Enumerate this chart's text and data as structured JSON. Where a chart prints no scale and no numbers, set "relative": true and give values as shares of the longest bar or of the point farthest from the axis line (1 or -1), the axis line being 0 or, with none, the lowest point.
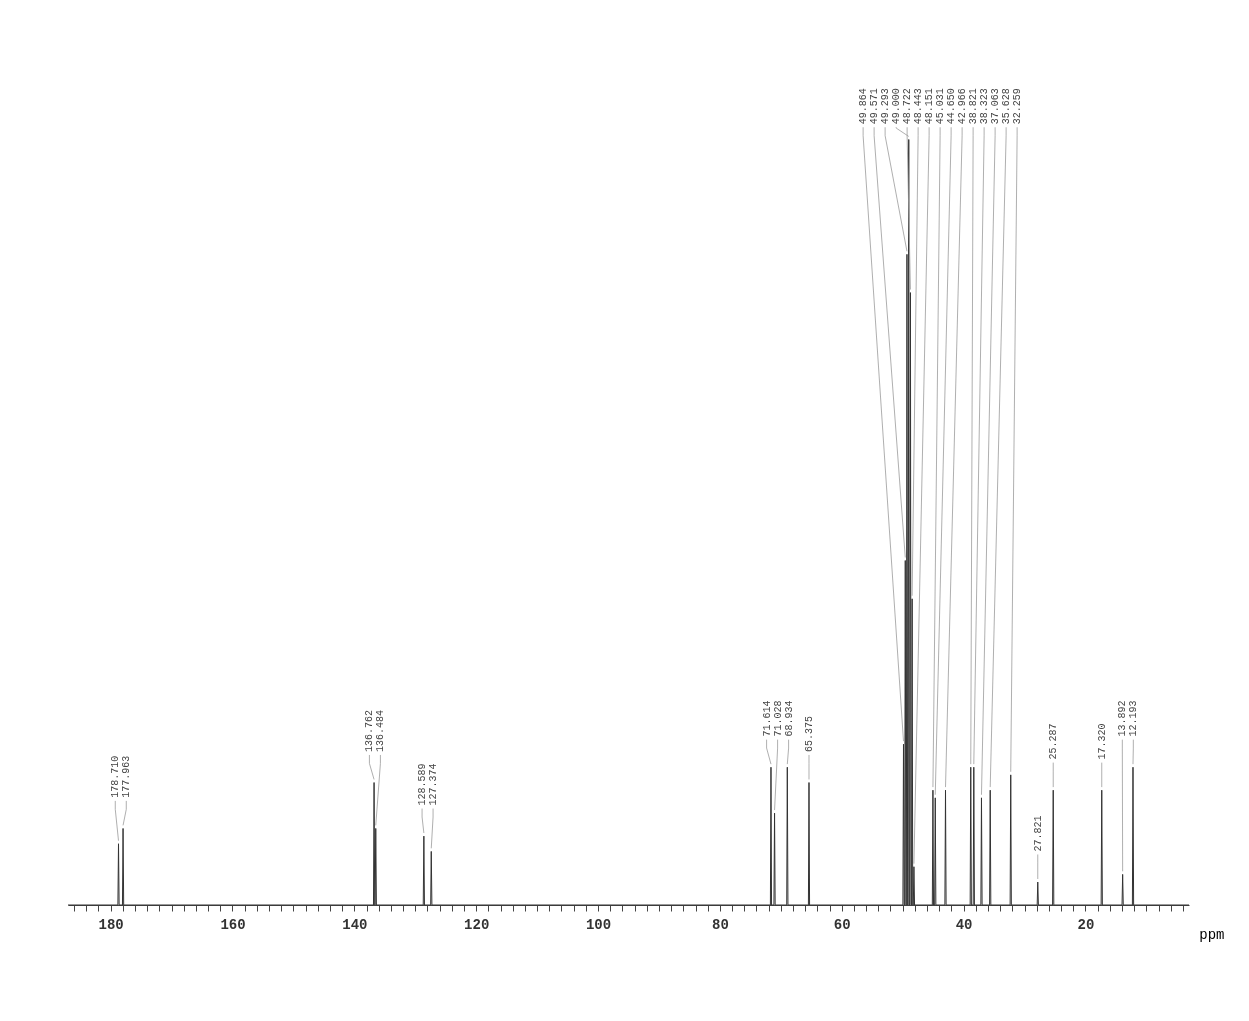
{
  "chart_data": {
    "type": "line",
    "relative": true,
    "xlabel": "ppm",
    "grid": false,
    "marker": "none",
    "line_style": "solid",
    "xlim": [
      187,
      3
    ],
    "xticks": [
      {
        "value": 186,
        "label": null
      },
      {
        "value": 184,
        "label": null
      },
      {
        "value": 182,
        "label": null
      },
      180,
      {
        "value": 178,
        "label": null
      },
      {
        "value": 176,
        "label": null
      },
      {
        "value": 174,
        "label": null
      },
      {
        "value": 172,
        "label": null
      },
      {
        "value": 170,
        "label": null
      },
      {
        "value": 168,
        "label": null
      },
      {
        "value": 166,
        "label": null
      },
      {
        "value": 164,
        "label": null
      },
      {
        "value": 162,
        "label": null
      },
      160,
      {
        "value": 158,
        "label": null
      },
      {
        "value": 156,
        "label": null
      },
      {
        "value": 154,
        "label": null
      },
      {
        "value": 152,
        "label": null
      },
      {
        "value": 150,
        "label": null
      },
      {
        "value": 148,
        "label": null
      },
      {
        "value": 146,
        "label": null
      },
      {
        "value": 144,
        "label": null
      },
      {
        "value": 142,
        "label": null
      },
      140,
      {
        "value": 138,
        "label": null
      },
      {
        "value": 136,
        "label": null
      },
      {
        "value": 134,
        "label": null
      },
      {
        "value": 132,
        "label": null
      },
      {
        "value": 130,
        "label": null
      },
      {
        "value": 128,
        "label": null
      },
      {
        "value": 126,
        "label": null
      },
      {
        "value": 124,
        "label": null
      },
      {
        "value": 122,
        "label": null
      },
      120,
      {
        "value": 118,
        "label": null
      },
      {
        "value": 116,
        "label": null
      },
      {
        "value": 114,
        "label": null
      },
      {
        "value": 112,
        "label": null
      },
      {
        "value": 110,
        "label": null
      },
      {
        "value": 108,
        "label": null
      },
      {
        "value": 106,
        "label": null
      },
      {
        "value": 104,
        "label": null
      },
      {
        "value": 102,
        "label": null
      },
      100,
      {
        "value": 98,
        "label": null
      },
      {
        "value": 96,
        "label": null
      },
      {
        "value": 94,
        "label": null
      },
      {
        "value": 92,
        "label": null
      },
      {
        "value": 90,
        "label": null
      },
      {
        "value": 88,
        "label": null
      },
      {
        "value": 86,
        "label": null
      },
      {
        "value": 84,
        "label": null
      },
      {
        "value": 82,
        "label": null
      },
      80,
      {
        "value": 78,
        "label": null
      },
      {
        "value": 76,
        "label": null
      },
      {
        "value": 74,
        "label": null
      },
      {
        "value": 72,
        "label": null
      },
      {
        "value": 70,
        "label": null
      },
      {
        "value": 68,
        "label": null
      },
      {
        "value": 66,
        "label": null
      },
      {
        "value": 64,
        "label": null
      },
      {
        "value": 62,
        "label": null
      },
      60,
      {
        "value": 58,
        "label": null
      },
      {
        "value": 56,
        "label": null
      },
      {
        "value": 54,
        "label": null
      },
      {
        "value": 52,
        "label": null
      },
      {
        "value": 50,
        "label": null
      },
      {
        "value": 48,
        "label": null
      },
      {
        "value": 46,
        "label": null
      },
      {
        "value": 44,
        "label": null
      },
      {
        "value": 42,
        "label": null
      },
      40,
      {
        "value": 38,
        "label": null
      },
      {
        "value": 36,
        "label": null
      },
      {
        "value": 34,
        "label": null
      },
      {
        "value": 32,
        "label": null
      },
      {
        "value": 30,
        "label": null
      },
      {
        "value": 28,
        "label": null
      },
      {
        "value": 26,
        "label": null
      },
      {
        "value": 24,
        "label": null
      },
      {
        "value": 22,
        "label": null
      },
      20,
      {
        "value": 18,
        "label": null
      },
      {
        "value": 16,
        "label": null
      },
      {
        "value": 14,
        "label": null
      },
      {
        "value": 12,
        "label": null
      },
      {
        "value": 10,
        "label": null
      },
      {
        "value": 8,
        "label": null
      },
      {
        "value": 6,
        "label": null
      },
      {
        "value": 4,
        "label": null
      }
    ],
    "series": [
      {
        "color": "#333333",
        "x": [
          187,
          178.81,
          178.71,
          178.61,
          178.06,
          177.963,
          177.86,
          136.86,
          136.762,
          136.66,
          136.58,
          136.484,
          136.38,
          128.69,
          128.589,
          128.49,
          127.47,
          127.374,
          127.27,
          71.71,
          71.614,
          71.52,
          71.13,
          71.028,
          70.93,
          69.03,
          68.934,
          68.83,
          65.47,
          65.375,
          65.28,
          49.96,
          49.864,
          49.76,
          49.67,
          49.571,
          49.47,
          49.39,
          49.293,
          49.19,
          49.1,
          49.0,
          48.9,
          48.82,
          48.722,
          48.62,
          48.54,
          48.443,
          48.35,
          48.25,
          48.151,
          48.05,
          45.13,
          45.031,
          44.93,
          44.75,
          44.65,
          44.55,
          43.07,
          42.966,
          42.87,
          38.92,
          38.821,
          38.72,
          38.42,
          38.323,
          38.22,
          37.16,
          37.063,
          36.96,
          35.73,
          35.628,
          35.53,
          32.36,
          32.259,
          32.16,
          27.92,
          27.821,
          27.72,
          25.39,
          25.287,
          25.19,
          17.42,
          17.32,
          17.22,
          13.99,
          13.892,
          13.79,
          12.29,
          12.193,
          12.09,
          3
        ],
        "values": [
          0,
          0,
          0.08,
          0,
          0,
          0.1,
          0,
          0,
          0.16,
          0,
          0,
          0.1,
          0,
          0,
          0.09,
          0,
          0,
          0.07,
          0,
          0,
          0.18,
          0,
          0,
          0.12,
          0,
          0,
          0.18,
          0,
          0,
          0.16,
          0,
          0,
          0.21,
          0,
          0,
          0.45,
          0,
          0,
          0.85,
          0,
          0,
          1,
          0,
          0,
          0.8,
          0,
          0,
          0.4,
          0,
          0,
          0.05,
          0,
          0,
          0.15,
          0,
          0,
          0.14,
          0,
          0,
          0.15,
          0,
          0,
          0.18,
          0,
          0,
          0.18,
          0,
          0,
          0.14,
          0,
          0,
          0.15,
          0,
          0,
          0.17,
          0,
          0,
          0.03,
          0,
          0,
          0.15,
          0,
          0,
          0.15,
          0,
          0,
          0.04,
          0,
          0,
          0.18,
          0,
          0
        ]
      }
    ],
    "annotations": [
      {
        "text": "178.710",
        "x": 178.71,
        "y": 0.08
      },
      {
        "text": "177.963",
        "x": 177.963,
        "y": 0.1
      },
      {
        "text": "136.762",
        "x": 136.762,
        "y": 0.16
      },
      {
        "text": "136.484",
        "x": 136.484,
        "y": 0.1
      },
      {
        "text": "128.589",
        "x": 128.589,
        "y": 0.09
      },
      {
        "text": "127.374",
        "x": 127.374,
        "y": 0.07
      },
      {
        "text": "71.614",
        "x": 71.614,
        "y": 0.18
      },
      {
        "text": "71.028",
        "x": 71.028,
        "y": 0.12
      },
      {
        "text": "68.934",
        "x": 68.934,
        "y": 0.18
      },
      {
        "text": "65.375",
        "x": 65.375,
        "y": 0.16
      },
      {
        "text": "49.864",
        "x": 49.864,
        "y": 0.21
      },
      {
        "text": "49.571",
        "x": 49.571,
        "y": 0.45
      },
      {
        "text": "49.293",
        "x": 49.293,
        "y": 0.85
      },
      {
        "text": "49.000",
        "x": 49.0,
        "y": 1
      },
      {
        "text": "48.722",
        "x": 48.722,
        "y": 0.8
      },
      {
        "text": "48.443",
        "x": 48.443,
        "y": 0.4
      },
      {
        "text": "48.151",
        "x": 48.151,
        "y": 0.05
      },
      {
        "text": "45.031",
        "x": 45.031,
        "y": 0.15
      },
      {
        "text": "44.650",
        "x": 44.65,
        "y": 0.14
      },
      {
        "text": "42.966",
        "x": 42.966,
        "y": 0.15
      },
      {
        "text": "38.821",
        "x": 38.821,
        "y": 0.18
      },
      {
        "text": "38.323",
        "x": 38.323,
        "y": 0.18
      },
      {
        "text": "37.063",
        "x": 37.063,
        "y": 0.14
      },
      {
        "text": "35.628",
        "x": 35.628,
        "y": 0.15
      },
      {
        "text": "32.259",
        "x": 32.259,
        "y": 0.17
      },
      {
        "text": "27.821",
        "x": 27.821,
        "y": 0.03
      },
      {
        "text": "25.287",
        "x": 25.287,
        "y": 0.15
      },
      {
        "text": "17.320",
        "x": 17.32,
        "y": 0.15
      },
      {
        "text": "13.892",
        "x": 13.892,
        "y": 0.04
      },
      {
        "text": "12.193",
        "x": 12.193,
        "y": 0.18
      }
    ]
  }
}
